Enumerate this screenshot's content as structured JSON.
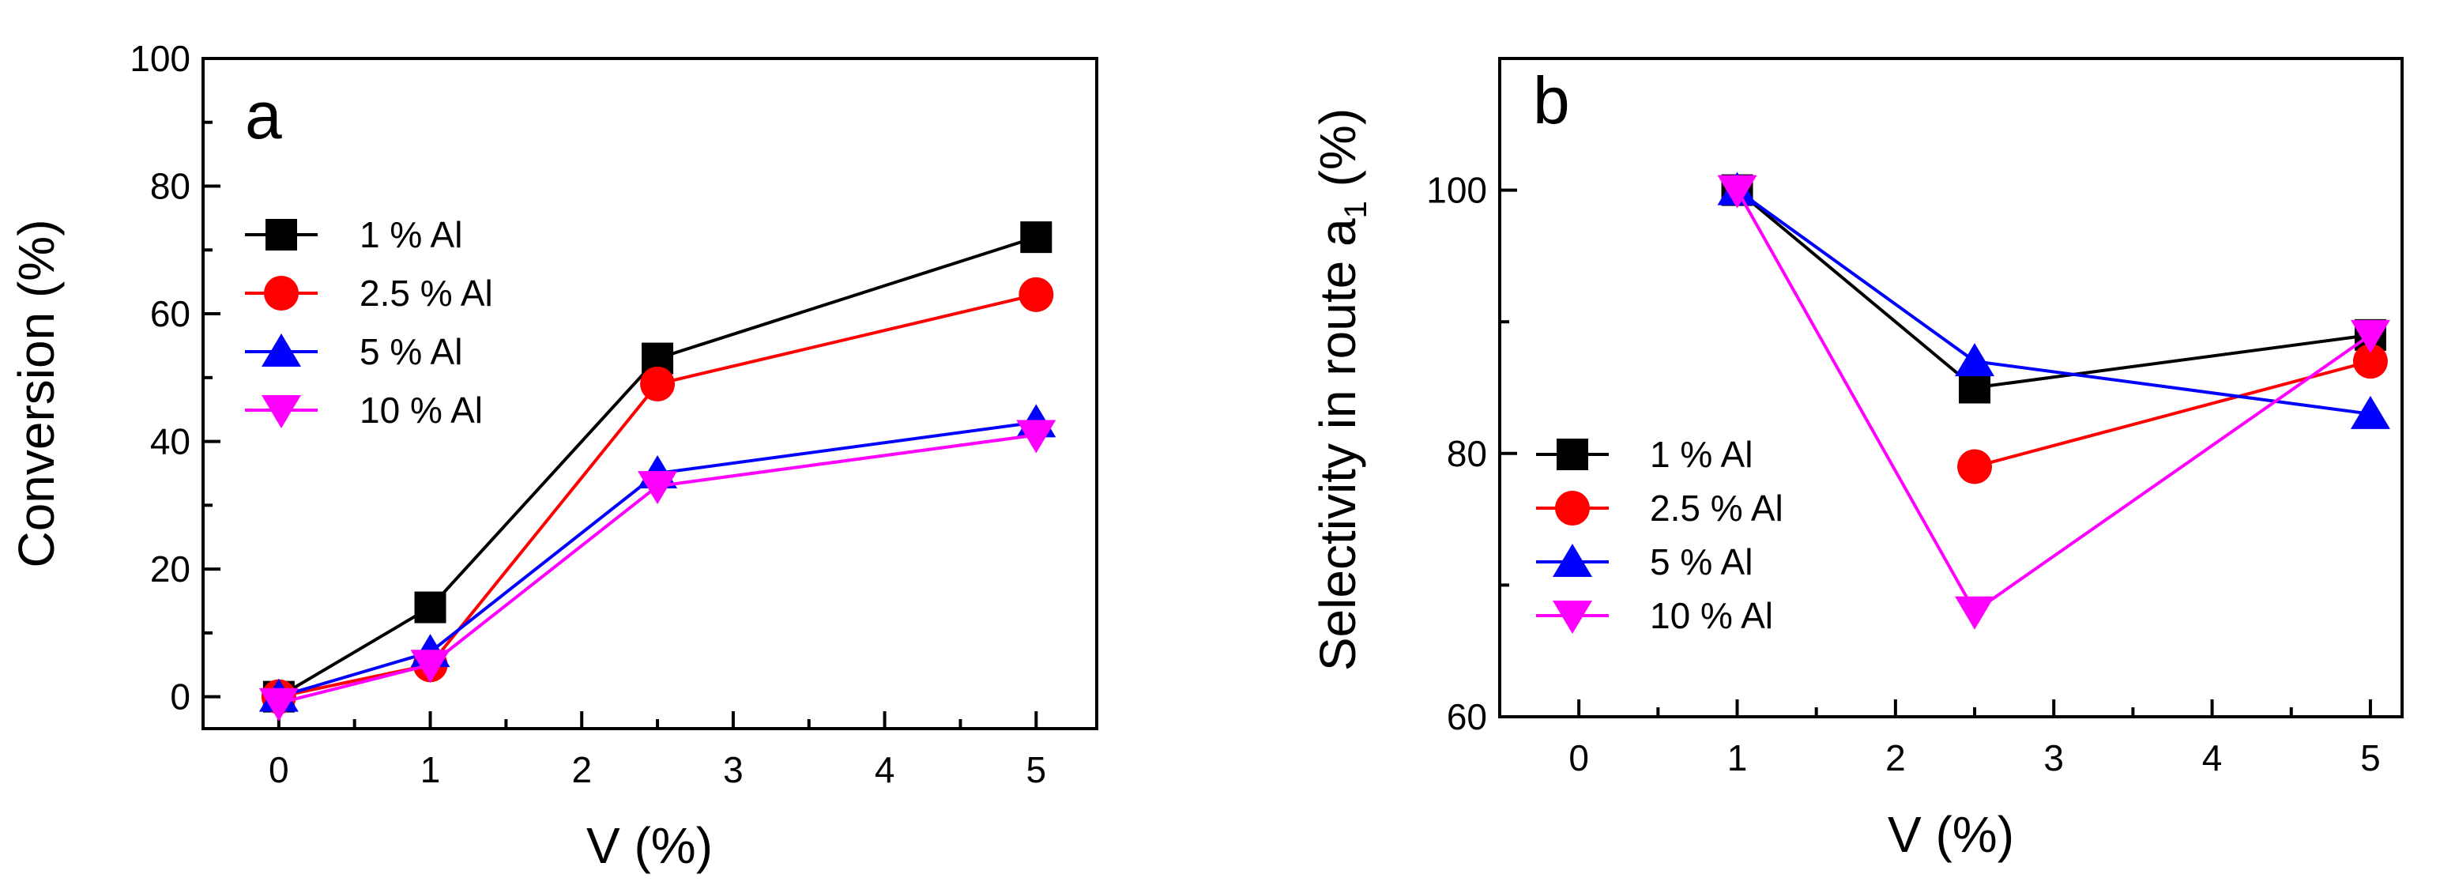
{
  "chart_data": [
    {
      "type": "line",
      "panel_label": "a",
      "xlabel": "V (%)",
      "ylabel": "Conversion (%)",
      "xlim": [
        -0.5,
        5.4
      ],
      "ylim": [
        -5,
        100
      ],
      "xticks": [
        0,
        1,
        2,
        3,
        4,
        5
      ],
      "yticks": [
        0,
        20,
        40,
        60,
        80,
        100
      ],
      "legend_position": "upper-left",
      "grid": false,
      "series": [
        {
          "name": "1 % Al",
          "color": "#000000",
          "marker": "square",
          "x": [
            0,
            1,
            2.5,
            5
          ],
          "y": [
            0,
            14,
            53,
            72
          ]
        },
        {
          "name": "2.5 % Al",
          "color": "#ff0000",
          "marker": "circle",
          "x": [
            0,
            1,
            2.5,
            5
          ],
          "y": [
            0,
            5,
            49,
            63
          ]
        },
        {
          "name": "5 % Al",
          "color": "#0000ff",
          "marker": "triangle-up",
          "x": [
            0,
            1,
            2.5,
            5
          ],
          "y": [
            0,
            7,
            35,
            43
          ]
        },
        {
          "name": "10 % Al",
          "color": "#ff00ff",
          "marker": "triangle-down",
          "x": [
            0,
            1,
            2.5,
            5
          ],
          "y": [
            -1,
            5,
            33,
            41
          ]
        }
      ]
    },
    {
      "type": "line",
      "panel_label": "b",
      "xlabel": "V (%)",
      "ylabel": "Selectivity in route a",
      "ylabel_subscript": "1",
      "ylabel_suffix": " (%)",
      "xlim": [
        -0.5,
        5.2
      ],
      "ylim": [
        60,
        110
      ],
      "xticks": [
        0,
        1,
        2,
        3,
        4,
        5
      ],
      "yticks": [
        60,
        80,
        100
      ],
      "legend_position": "lower-left",
      "grid": false,
      "series": [
        {
          "name": "1 % Al",
          "color": "#000000",
          "marker": "square",
          "x": [
            1,
            2.5,
            5
          ],
          "y": [
            100,
            85,
            89
          ]
        },
        {
          "name": "2.5 % Al",
          "color": "#ff0000",
          "marker": "circle",
          "x": [
            2.5,
            5
          ],
          "y": [
            79,
            87
          ]
        },
        {
          "name": "5 % Al",
          "color": "#0000ff",
          "marker": "triangle-up",
          "x": [
            1,
            2.5,
            5
          ],
          "y": [
            100,
            87,
            83
          ]
        },
        {
          "name": "10 % Al",
          "color": "#ff00ff",
          "marker": "triangle-down",
          "x": [
            1,
            2.5,
            5
          ],
          "y": [
            100,
            68,
            89
          ]
        }
      ]
    }
  ]
}
